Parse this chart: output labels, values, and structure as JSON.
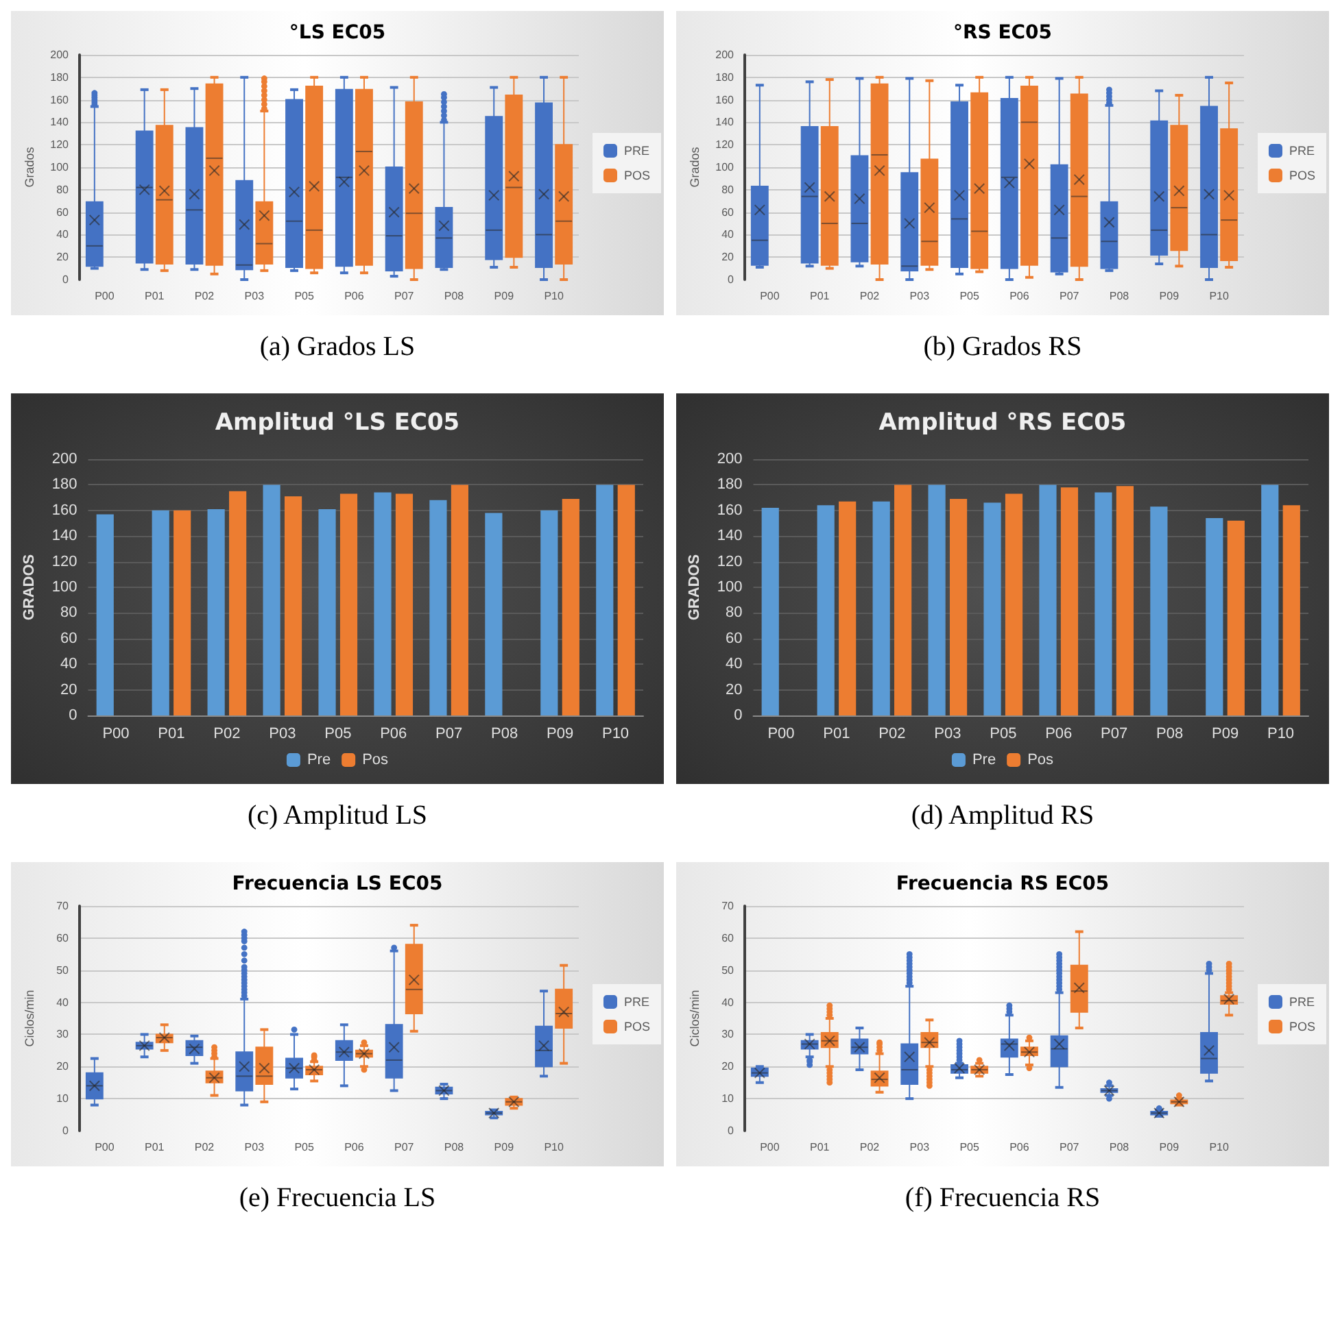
{
  "chart_data": [
    {
      "type": "box",
      "title": "°LS EC05",
      "ylabel": "Grados",
      "categories": [
        "P00",
        "P01",
        "P02",
        "P03",
        "P05",
        "P06",
        "P07",
        "P08",
        "P09",
        "P10"
      ],
      "ylim": [
        0,
        200
      ],
      "yticks": [
        0,
        20,
        40,
        60,
        80,
        100,
        120,
        140,
        160,
        180,
        200
      ],
      "grid": "y",
      "legend": "right",
      "annotations": [
        "(a) Grados LS"
      ],
      "series": [
        {
          "name": "PRE",
          "color": "#4472c4",
          "boxes": [
            {
              "low": 10,
              "q1": 12,
              "median": 30,
              "q3": 69,
              "high": 154,
              "mean": 53,
              "outliers": [
                156,
                158,
                160,
                162,
                164,
                166
              ]
            },
            {
              "low": 9,
              "q1": 15,
              "median": 82,
              "q3": 132,
              "high": 169,
              "mean": 80
            },
            {
              "low": 9,
              "q1": 14,
              "median": 62,
              "q3": 135,
              "high": 170,
              "mean": 76
            },
            {
              "low": 0,
              "q1": 9,
              "median": 13,
              "q3": 88,
              "high": 180,
              "mean": 49
            },
            {
              "low": 8,
              "q1": 11,
              "median": 52,
              "q3": 160,
              "high": 169,
              "mean": 78
            },
            {
              "low": 6,
              "q1": 12,
              "median": 91,
              "q3": 169,
              "high": 180,
              "mean": 87
            },
            {
              "low": 3,
              "q1": 8,
              "median": 39,
              "q3": 100,
              "high": 171,
              "mean": 60
            },
            {
              "low": 9,
              "q1": 11,
              "median": 37,
              "q3": 64,
              "high": 140,
              "mean": 48,
              "outliers": [
                142,
                146,
                150,
                154,
                158,
                162,
                165
              ]
            },
            {
              "low": 11,
              "q1": 18,
              "median": 44,
              "q3": 145,
              "high": 171,
              "mean": 75
            },
            {
              "low": 0,
              "q1": 11,
              "median": 40,
              "q3": 157,
              "high": 180,
              "mean": 76
            }
          ]
        },
        {
          "name": "POS",
          "color": "#ed7d31",
          "boxes": [
            null,
            {
              "low": 8,
              "q1": 14,
              "median": 71,
              "q3": 137,
              "high": 169,
              "mean": 79
            },
            {
              "low": 5,
              "q1": 13,
              "median": 108,
              "q3": 174,
              "high": 180,
              "mean": 97
            },
            {
              "low": 8,
              "q1": 14,
              "median": 32,
              "q3": 69,
              "high": 150,
              "mean": 57,
              "outliers": [
                152,
                156,
                160,
                164,
                168,
                172,
                176,
                179
              ]
            },
            {
              "low": 6,
              "q1": 10,
              "median": 44,
              "q3": 172,
              "high": 180,
              "mean": 83
            },
            {
              "low": 6,
              "q1": 13,
              "median": 114,
              "q3": 169,
              "high": 180,
              "mean": 97
            },
            {
              "low": 0,
              "q1": 10,
              "median": 59,
              "q3": 158,
              "high": 180,
              "mean": 81
            },
            null,
            {
              "low": 11,
              "q1": 20,
              "median": 82,
              "q3": 164,
              "high": 180,
              "mean": 92
            },
            {
              "low": 0,
              "q1": 14,
              "median": 52,
              "q3": 120,
              "high": 180,
              "mean": 74
            }
          ]
        }
      ]
    },
    {
      "type": "box",
      "title": "°RS EC05",
      "ylabel": "Grados",
      "categories": [
        "P00",
        "P01",
        "P02",
        "P03",
        "P05",
        "P06",
        "P07",
        "P08",
        "P09",
        "P10"
      ],
      "ylim": [
        0,
        200
      ],
      "yticks": [
        0,
        20,
        40,
        60,
        80,
        100,
        120,
        140,
        160,
        180,
        200
      ],
      "grid": "y",
      "legend": "right",
      "annotations": [
        "(b) Grados RS"
      ],
      "series": [
        {
          "name": "PRE",
          "color": "#4472c4",
          "boxes": [
            {
              "low": 11,
              "q1": 13,
              "median": 35,
              "q3": 83,
              "high": 173,
              "mean": 62
            },
            {
              "low": 12,
              "q1": 15,
              "median": 74,
              "q3": 136,
              "high": 176,
              "mean": 82
            },
            {
              "low": 12,
              "q1": 16,
              "median": 50,
              "q3": 110,
              "high": 179,
              "mean": 72
            },
            {
              "low": 0,
              "q1": 8,
              "median": 12,
              "q3": 95,
              "high": 179,
              "mean": 50
            },
            {
              "low": 5,
              "q1": 11,
              "median": 54,
              "q3": 158,
              "high": 173,
              "mean": 75
            },
            {
              "low": 0,
              "q1": 10,
              "median": 91,
              "q3": 161,
              "high": 180,
              "mean": 86
            },
            {
              "low": 5,
              "q1": 7,
              "median": 37,
              "q3": 102,
              "high": 179,
              "mean": 62
            },
            {
              "low": 8,
              "q1": 10,
              "median": 34,
              "q3": 69,
              "high": 155,
              "mean": 51,
              "outliers": [
                157,
                160,
                163,
                166,
                169
              ]
            },
            {
              "low": 14,
              "q1": 22,
              "median": 44,
              "q3": 141,
              "high": 168,
              "mean": 74
            },
            {
              "low": 0,
              "q1": 11,
              "median": 40,
              "q3": 154,
              "high": 180,
              "mean": 76
            }
          ]
        },
        {
          "name": "POS",
          "color": "#ed7d31",
          "boxes": [
            null,
            {
              "low": 10,
              "q1": 13,
              "median": 50,
              "q3": 136,
              "high": 178,
              "mean": 74
            },
            {
              "low": 0,
              "q1": 14,
              "median": 111,
              "q3": 174,
              "high": 180,
              "mean": 97
            },
            {
              "low": 9,
              "q1": 13,
              "median": 34,
              "q3": 107,
              "high": 177,
              "mean": 64
            },
            {
              "low": 7,
              "q1": 10,
              "median": 43,
              "q3": 166,
              "high": 180,
              "mean": 81
            },
            {
              "low": 2,
              "q1": 13,
              "median": 140,
              "q3": 172,
              "high": 180,
              "mean": 103
            },
            {
              "low": 0,
              "q1": 12,
              "median": 74,
              "q3": 165,
              "high": 180,
              "mean": 89
            },
            null,
            {
              "low": 12,
              "q1": 26,
              "median": 64,
              "q3": 137,
              "high": 164,
              "mean": 79
            },
            {
              "low": 11,
              "q1": 17,
              "median": 53,
              "q3": 134,
              "high": 175,
              "mean": 75
            }
          ]
        }
      ]
    },
    {
      "type": "bar",
      "title": "Amplitud °LS EC05",
      "ylabel": "GRADOS",
      "categories": [
        "P00",
        "P01",
        "P02",
        "P03",
        "P05",
        "P06",
        "P07",
        "P08",
        "P09",
        "P10"
      ],
      "ylim": [
        0,
        200
      ],
      "yticks": [
        0,
        20,
        40,
        60,
        80,
        100,
        120,
        140,
        160,
        180,
        200
      ],
      "grid": "y",
      "legend": "bottom",
      "annotations": [
        "(c) Amplitud LS"
      ],
      "series": [
        {
          "name": "Pre",
          "color": "#5b9bd5",
          "values": [
            157,
            160,
            161,
            180,
            161,
            174,
            168,
            158,
            160,
            180
          ]
        },
        {
          "name": "Pos",
          "color": "#ed7d31",
          "values": [
            null,
            160,
            175,
            171,
            173,
            173,
            180,
            null,
            169,
            180
          ]
        }
      ]
    },
    {
      "type": "bar",
      "title": "Amplitud °RS EC05",
      "ylabel": "GRADOS",
      "categories": [
        "P00",
        "P01",
        "P02",
        "P03",
        "P05",
        "P06",
        "P07",
        "P08",
        "P09",
        "P10"
      ],
      "ylim": [
        0,
        200
      ],
      "yticks": [
        0,
        20,
        40,
        60,
        80,
        100,
        120,
        140,
        160,
        180,
        200
      ],
      "grid": "y",
      "legend": "bottom",
      "annotations": [
        "(d) Amplitud RS"
      ],
      "series": [
        {
          "name": "Pre",
          "color": "#5b9bd5",
          "values": [
            162,
            164,
            167,
            180,
            166,
            180,
            174,
            163,
            154,
            180
          ]
        },
        {
          "name": "Pos",
          "color": "#ed7d31",
          "values": [
            null,
            167,
            180,
            169,
            173,
            178,
            179,
            null,
            152,
            164
          ]
        }
      ]
    },
    {
      "type": "box",
      "title": "Frecuencia LS EC05",
      "ylabel": "Ciclos/min",
      "categories": [
        "P00",
        "P01",
        "P02",
        "P03",
        "P05",
        "P06",
        "P07",
        "P08",
        "P09",
        "P10"
      ],
      "ylim": [
        0,
        70
      ],
      "yticks": [
        0,
        10,
        20,
        30,
        40,
        50,
        60,
        70
      ],
      "grid": "y",
      "legend": "right",
      "annotations": [
        "(e) Frecuencia LS"
      ],
      "series": [
        {
          "name": "PRE",
          "color": "#4472c4",
          "boxes": [
            {
              "low": 8,
              "q1": 10,
              "median": 14,
              "q3": 18,
              "high": 22.5,
              "mean": 14
            },
            {
              "low": 23,
              "q1": 25.5,
              "median": 26.5,
              "q3": 27.5,
              "high": 30,
              "mean": 26.5
            },
            {
              "low": 21,
              "q1": 23.5,
              "median": 26,
              "q3": 28,
              "high": 29.5,
              "mean": 25.5
            },
            {
              "low": 8,
              "q1": 12.5,
              "median": 17,
              "q3": 24.5,
              "high": 41,
              "mean": 20,
              "outliers": [
                42,
                43,
                44,
                45,
                46,
                47,
                48,
                49,
                50,
                51,
                53,
                55,
                57,
                59,
                60,
                61,
                62
              ]
            },
            {
              "low": 13,
              "q1": 16.5,
              "median": 19.5,
              "q3": 22.5,
              "high": 30,
              "mean": 19.5,
              "outliers": [
                31.5
              ]
            },
            {
              "low": 14,
              "q1": 22,
              "median": 24.5,
              "q3": 28,
              "high": 33,
              "mean": 24.5
            },
            {
              "low": 12.5,
              "q1": 16.5,
              "median": 22,
              "q3": 33,
              "high": 56,
              "mean": 26,
              "outliers": [
                57
              ]
            },
            {
              "low": 10,
              "q1": 11.5,
              "median": 12.5,
              "q3": 13.5,
              "high": 14.5,
              "mean": 12.5
            },
            {
              "low": 4,
              "q1": 5,
              "median": 5.5,
              "q3": 6,
              "high": 6.5,
              "mean": 5.5
            },
            {
              "low": 17,
              "q1": 20,
              "median": 25,
              "q3": 32.5,
              "high": 43.5,
              "mean": 26.5
            }
          ]
        },
        {
          "name": "POS",
          "color": "#ed7d31",
          "boxes": [
            null,
            {
              "low": 25,
              "q1": 27.5,
              "median": 29,
              "q3": 30,
              "high": 33,
              "mean": 29
            },
            {
              "low": 11,
              "q1": 15,
              "median": 16.5,
              "q3": 18.5,
              "high": 22.5,
              "mean": 16.5,
              "outliers": [
                23,
                24,
                25,
                26
              ]
            },
            {
              "low": 9,
              "q1": 14.5,
              "median": 17,
              "q3": 26,
              "high": 31.5,
              "mean": 19.5
            },
            {
              "low": 15.5,
              "q1": 17.5,
              "median": 19,
              "q3": 20,
              "high": 21.5,
              "mean": 19,
              "outliers": [
                22,
                23,
                23.5
              ]
            },
            {
              "low": 20,
              "q1": 23,
              "median": 24,
              "q3": 25,
              "high": 26.5,
              "mean": 24,
              "outliers": [
                19,
                27.5
              ]
            },
            {
              "low": 31,
              "q1": 36.5,
              "median": 44,
              "q3": 58,
              "high": 64,
              "mean": 47
            },
            null,
            {
              "low": 7,
              "q1": 8,
              "median": 9,
              "q3": 10,
              "high": 10.5,
              "mean": 9
            },
            {
              "low": 21,
              "q1": 32,
              "median": 36.5,
              "q3": 44,
              "high": 51.5,
              "mean": 37
            }
          ]
        }
      ]
    },
    {
      "type": "box",
      "title": "Frecuencia RS EC05",
      "ylabel": "Ciclos/min",
      "categories": [
        "P00",
        "P01",
        "P02",
        "P03",
        "P05",
        "P06",
        "P07",
        "P08",
        "P09",
        "P10"
      ],
      "ylim": [
        0,
        70
      ],
      "yticks": [
        0,
        10,
        20,
        30,
        40,
        50,
        60,
        70
      ],
      "grid": "y",
      "legend": "right",
      "annotations": [
        "(f) Frecuencia RS"
      ],
      "series": [
        {
          "name": "PRE",
          "color": "#4472c4",
          "boxes": [
            {
              "low": 15,
              "q1": 17,
              "median": 18,
              "q3": 19.5,
              "high": 20,
              "mean": 18
            },
            {
              "low": 23,
              "q1": 25.5,
              "median": 27,
              "q3": 28,
              "high": 30,
              "mean": 27,
              "outliers": [
                20.5,
                21.5,
                22
              ]
            },
            {
              "low": 19,
              "q1": 24,
              "median": 26,
              "q3": 28.5,
              "high": 32,
              "mean": 26
            },
            {
              "low": 10,
              "q1": 14.5,
              "median": 19,
              "q3": 27,
              "high": 45,
              "mean": 23,
              "outliers": [
                46,
                47,
                48,
                49,
                50,
                51,
                52,
                53,
                54,
                55
              ]
            },
            {
              "low": 16.5,
              "q1": 18,
              "median": 19,
              "q3": 20.5,
              "high": 21,
              "mean": 19.5,
              "outliers": [
                22,
                23,
                24,
                25,
                26,
                27,
                28
              ]
            },
            {
              "low": 17.5,
              "q1": 23,
              "median": 27,
              "q3": 28.5,
              "high": 36,
              "mean": 26.5,
              "outliers": [
                37,
                38,
                39
              ]
            },
            {
              "low": 13.5,
              "q1": 20,
              "median": 25.5,
              "q3": 29.5,
              "high": 43,
              "mean": 27,
              "outliers": [
                44,
                45,
                46,
                47,
                48,
                49,
                50,
                51,
                52,
                53,
                54,
                55
              ]
            },
            {
              "low": 11,
              "q1": 12,
              "median": 12.5,
              "q3": 13,
              "high": 14,
              "mean": 12.5,
              "outliers": [
                10,
                15
              ]
            },
            {
              "low": 4.5,
              "q1": 5,
              "median": 5.5,
              "q3": 6,
              "high": 6.5,
              "mean": 5.5,
              "outliers": [
                7
              ]
            },
            {
              "low": 15.5,
              "q1": 18,
              "median": 22.5,
              "q3": 30.5,
              "high": 49,
              "mean": 25,
              "outliers": [
                50,
                51,
                52
              ]
            }
          ]
        },
        {
          "name": "POS",
          "color": "#ed7d31",
          "boxes": [
            null,
            {
              "low": 20,
              "q1": 26,
              "median": 28,
              "q3": 30.5,
              "high": 35,
              "mean": 28,
              "outliers": [
                15,
                16,
                17,
                18,
                19,
                36,
                37,
                38,
                39
              ]
            },
            {
              "low": 12,
              "q1": 14,
              "median": 16,
              "q3": 18.5,
              "high": 24,
              "mean": 16.5,
              "outliers": [
                25,
                26,
                27,
                27.5
              ]
            },
            {
              "low": 20,
              "q1": 26,
              "median": 27.5,
              "q3": 30.5,
              "high": 34.5,
              "mean": 27.5,
              "outliers": [
                14,
                15,
                16,
                17,
                18,
                19
              ]
            },
            {
              "low": 17,
              "q1": 18,
              "median": 19,
              "q3": 20,
              "high": 21,
              "mean": 19,
              "outliers": [
                22
              ]
            },
            {
              "low": 20.5,
              "q1": 23.5,
              "median": 24.5,
              "q3": 26,
              "high": 28,
              "mean": 24.5,
              "outliers": [
                19.5,
                29
              ]
            },
            {
              "low": 32,
              "q1": 37,
              "median": 43.5,
              "q3": 51.5,
              "high": 62,
              "mean": 44.5
            },
            null,
            {
              "low": 8,
              "q1": 8.5,
              "median": 9,
              "q3": 9.5,
              "high": 10,
              "mean": 9,
              "outliers": [
                11
              ]
            },
            {
              "low": 36,
              "q1": 39.5,
              "median": 40.5,
              "q3": 42,
              "high": 43,
              "mean": 41,
              "outliers": [
                44,
                45,
                46,
                47,
                48,
                49,
                50,
                51,
                52
              ]
            }
          ]
        }
      ]
    }
  ]
}
